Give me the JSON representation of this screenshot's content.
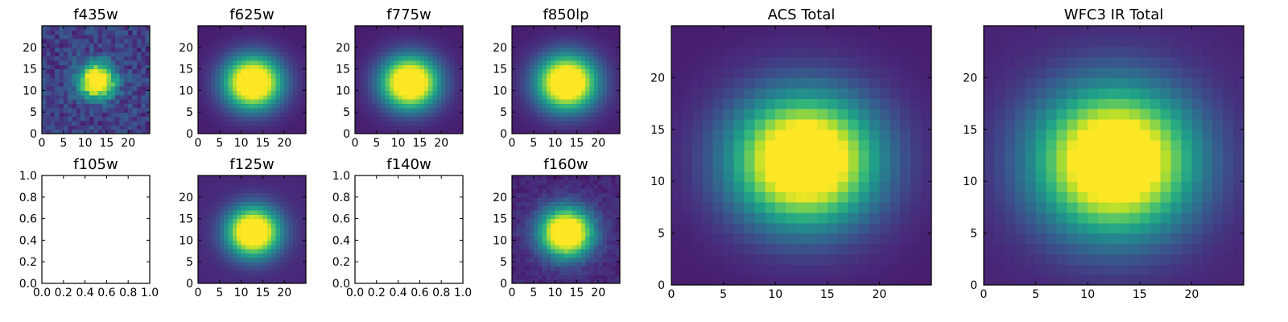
{
  "chart_data": [
    {
      "type": "heatmap",
      "title": "f435w",
      "xlim": [
        0,
        25
      ],
      "ylim": [
        0,
        25
      ],
      "xticks": [
        "0",
        "5",
        "10",
        "15",
        "20"
      ],
      "yticks": [
        "0",
        "5",
        "10",
        "15",
        "20"
      ],
      "grid_size": 25,
      "peak_center": [
        12.3,
        11.8
      ],
      "sigma": [
        2.8,
        2.7
      ],
      "background_level": 0.14,
      "noise": 0.08,
      "colormap": "viridis"
    },
    {
      "type": "heatmap",
      "title": "f625w",
      "xlim": [
        0,
        25
      ],
      "ylim": [
        0,
        25
      ],
      "xticks": [
        "0",
        "5",
        "10",
        "15",
        "20"
      ],
      "yticks": [
        "0",
        "5",
        "10",
        "15",
        "20"
      ],
      "grid_size": 25,
      "peak_center": [
        12.2,
        11.4
      ],
      "sigma": [
        4.6,
        4.2
      ],
      "background_level": 0.06,
      "noise": 0,
      "colormap": "viridis"
    },
    {
      "type": "heatmap",
      "title": "f775w",
      "xlim": [
        0,
        25
      ],
      "ylim": [
        0,
        25
      ],
      "xticks": [
        "0",
        "5",
        "10",
        "15",
        "20"
      ],
      "yticks": [
        "0",
        "5",
        "10",
        "15",
        "20"
      ],
      "grid_size": 25,
      "peak_center": [
        12.2,
        11.4
      ],
      "sigma": [
        4.6,
        4.2
      ],
      "background_level": 0.06,
      "noise": 0,
      "colormap": "viridis"
    },
    {
      "type": "heatmap",
      "title": "f850lp",
      "xlim": [
        0,
        25
      ],
      "ylim": [
        0,
        25
      ],
      "xticks": [
        "0",
        "5",
        "10",
        "15",
        "20"
      ],
      "yticks": [
        "0",
        "5",
        "10",
        "15",
        "20"
      ],
      "grid_size": 25,
      "peak_center": [
        12.2,
        11.4
      ],
      "sigma": [
        4.8,
        4.4
      ],
      "background_level": 0.06,
      "noise": 0,
      "colormap": "viridis"
    },
    {
      "type": "heatmap",
      "title": "ACS Total",
      "xlim": [
        0,
        25
      ],
      "ylim": [
        0,
        25
      ],
      "xticks": [
        "0",
        "5",
        "10",
        "15",
        "20"
      ],
      "yticks": [
        "0",
        "5",
        "10",
        "15",
        "20"
      ],
      "grid_size": 25,
      "peak_center": [
        12.3,
        11.6
      ],
      "sigma": [
        4.8,
        4.3
      ],
      "background_level": 0.06,
      "noise": 0,
      "colormap": "viridis"
    },
    {
      "type": "heatmap",
      "title": "f105w",
      "xlim": [
        0.0,
        1.0
      ],
      "ylim": [
        0.0,
        1.0
      ],
      "xticks": [
        "0.0",
        "0.2",
        "0.4",
        "0.6",
        "0.8",
        "1.0"
      ],
      "yticks": [
        "0.0",
        "0.2",
        "0.4",
        "0.6",
        "0.8",
        "1.0"
      ],
      "empty": true
    },
    {
      "type": "heatmap",
      "title": "f125w",
      "xlim": [
        0,
        25
      ],
      "ylim": [
        0,
        25
      ],
      "xticks": [
        "0",
        "5",
        "10",
        "15",
        "20"
      ],
      "yticks": [
        "0",
        "5",
        "10",
        "15",
        "20"
      ],
      "grid_size": 25,
      "peak_center": [
        12.3,
        11.5
      ],
      "sigma": [
        4.2,
        3.9
      ],
      "background_level": 0.08,
      "noise": 0,
      "colormap": "viridis"
    },
    {
      "type": "heatmap",
      "title": "f140w",
      "xlim": [
        0.0,
        1.0
      ],
      "ylim": [
        0.0,
        1.0
      ],
      "xticks": [
        "0.0",
        "0.2",
        "0.4",
        "0.6",
        "0.8",
        "1.0"
      ],
      "yticks": [
        "0.0",
        "0.2",
        "0.4",
        "0.6",
        "0.8",
        "1.0"
      ],
      "empty": true
    },
    {
      "type": "heatmap",
      "title": "f160w",
      "xlim": [
        0,
        25
      ],
      "ylim": [
        0,
        25
      ],
      "xticks": [
        "0",
        "5",
        "10",
        "15",
        "20"
      ],
      "yticks": [
        "0",
        "5",
        "10",
        "15",
        "20"
      ],
      "grid_size": 25,
      "peak_center": [
        12.1,
        11.3
      ],
      "sigma": [
        4.2,
        3.9
      ],
      "background_level": 0.08,
      "noise": 0.03,
      "colormap": "viridis"
    },
    {
      "type": "heatmap",
      "title": "WFC3 IR Total",
      "xlim": [
        0,
        25
      ],
      "ylim": [
        0,
        25
      ],
      "xticks": [
        "0",
        "5",
        "10",
        "15",
        "20"
      ],
      "yticks": [
        "0",
        "5",
        "10",
        "15",
        "20"
      ],
      "grid_size": 25,
      "peak_center": [
        12.1,
        11.5
      ],
      "sigma": [
        5.2,
        4.8
      ],
      "background_level": 0.07,
      "noise": 0,
      "colormap": "viridis"
    }
  ]
}
